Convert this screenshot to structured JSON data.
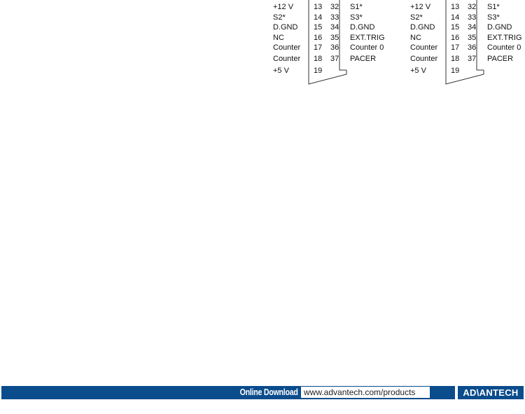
{
  "connectors": [
    {
      "rows": [
        {
          "left": "+12 V",
          "pin_a": "13",
          "pin_b": "32",
          "right": "S1*"
        },
        {
          "left": "S2*",
          "pin_a": "14",
          "pin_b": "33",
          "right": "S3*"
        },
        {
          "left": "D.GND",
          "pin_a": "15",
          "pin_b": "34",
          "right": "D.GND"
        },
        {
          "left": "NC",
          "pin_a": "16",
          "pin_b": "35",
          "right": "EXT.TRIG"
        },
        {
          "left": "Counter",
          "pin_a": "17",
          "pin_b": "36",
          "right": "Counter 0"
        },
        {
          "left": "Counter",
          "pin_a": "18",
          "pin_b": "37",
          "right": "PACER"
        },
        {
          "left": "+5 V",
          "pin_a": "19",
          "pin_b": "",
          "right": ""
        }
      ]
    },
    {
      "rows": [
        {
          "left": "+12 V",
          "pin_a": "13",
          "pin_b": "32",
          "right": "S1*"
        },
        {
          "left": "S2*",
          "pin_a": "14",
          "pin_b": "33",
          "right": "S3*"
        },
        {
          "left": "D.GND",
          "pin_a": "15",
          "pin_b": "34",
          "right": "D.GND"
        },
        {
          "left": "NC",
          "pin_a": "16",
          "pin_b": "35",
          "right": "EXT.TRIG"
        },
        {
          "left": "Counter",
          "pin_a": "17",
          "pin_b": "36",
          "right": "Counter 0"
        },
        {
          "left": "Counter",
          "pin_a": "18",
          "pin_b": "37",
          "right": "PACER"
        },
        {
          "left": "+5 V",
          "pin_a": "19",
          "pin_b": "",
          "right": ""
        }
      ]
    }
  ],
  "footer": {
    "download_label": "Online Download",
    "url": "www.advantech.com/products",
    "logo": "ADVANTECH",
    "color": "#0b4c8c"
  }
}
